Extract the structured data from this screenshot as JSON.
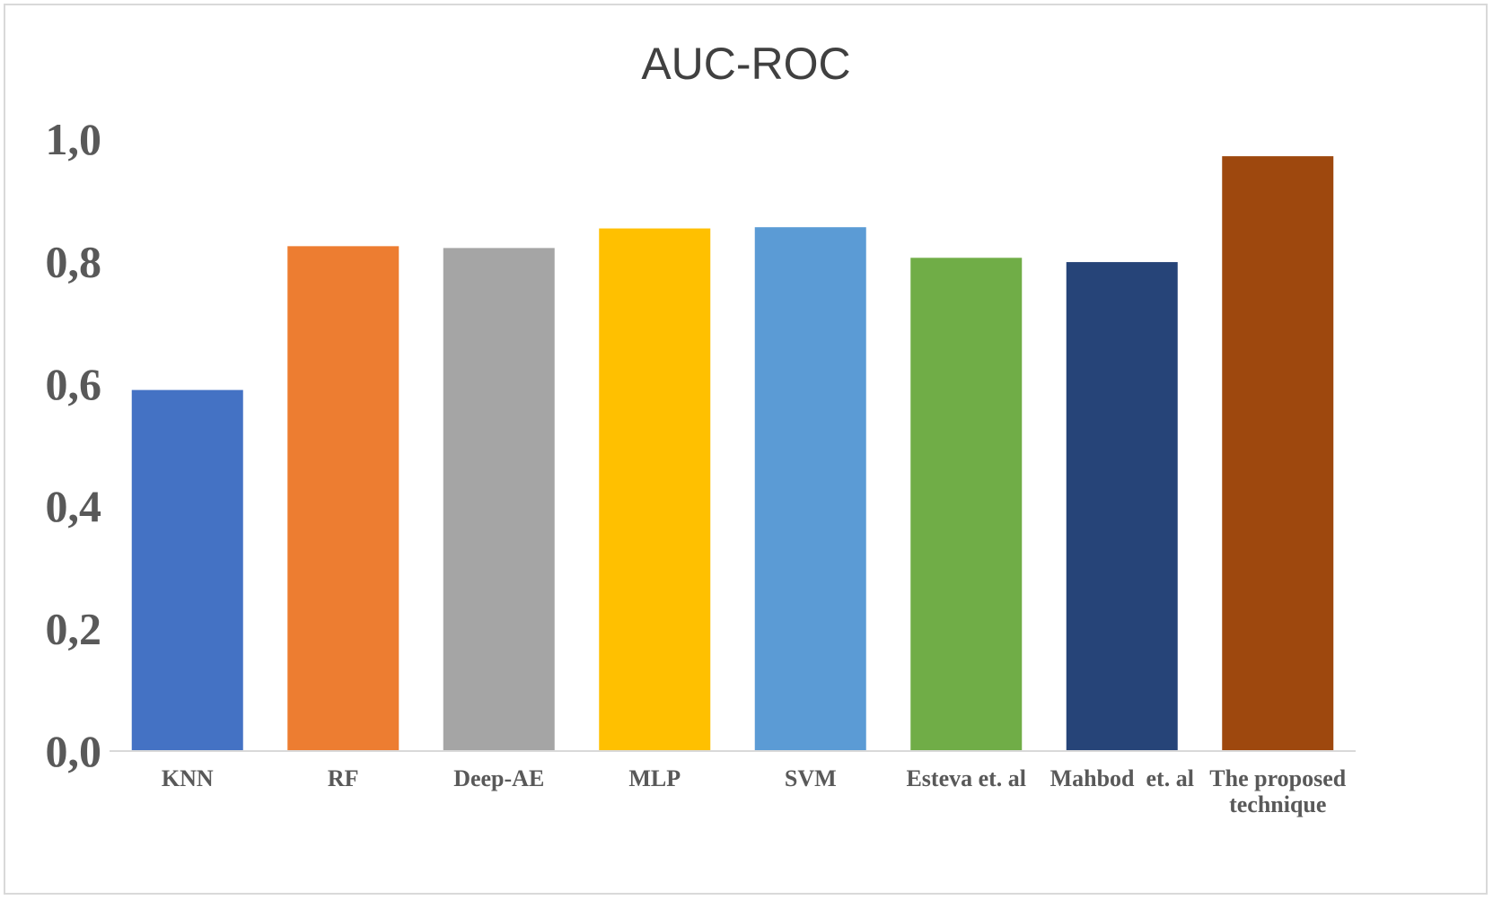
{
  "chart_data": {
    "type": "bar",
    "title": "AUC-ROC",
    "xlabel": "",
    "ylabel": "",
    "categories": [
      "KNN",
      "RF",
      "Deep-AE",
      "MLP",
      "SVM",
      "Esteva et. al",
      "Mahbod  et. al",
      "The proposed technique"
    ],
    "category_label_lines": [
      [
        "KNN"
      ],
      [
        "RF"
      ],
      [
        "Deep-AE"
      ],
      [
        "MLP"
      ],
      [
        "SVM"
      ],
      [
        "Esteva et. al"
      ],
      [
        "Mahbod  et. al"
      ],
      [
        "The proposed",
        "technique"
      ]
    ],
    "values": [
      0.59,
      0.825,
      0.822,
      0.854,
      0.856,
      0.806,
      0.799,
      0.972
    ],
    "colors": [
      "#4472C4",
      "#ED7D31",
      "#A5A5A5",
      "#FFC000",
      "#5B9BD5",
      "#70AD47",
      "#264478",
      "#9E480E"
    ],
    "ylim": [
      0,
      1.0
    ],
    "yticks": [
      0.0,
      0.2,
      0.4,
      0.6,
      0.8,
      1.0
    ],
    "ytick_labels": [
      "0,0",
      "0,2",
      "0,4",
      "0,6",
      "0,8",
      "1,0"
    ],
    "grid": false,
    "legend": "none"
  }
}
